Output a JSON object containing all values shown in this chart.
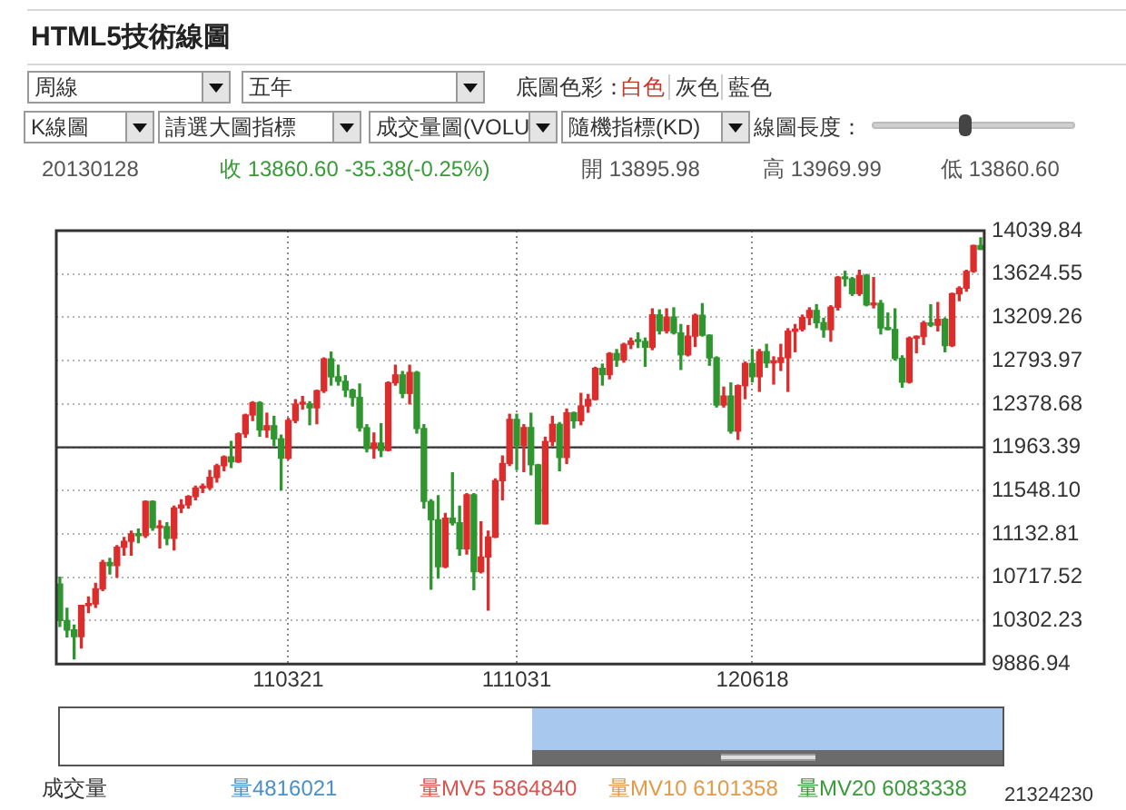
{
  "chart_data": {
    "type": "candlestick",
    "title": "HTML5技術線圖",
    "categories": [
      null,
      null,
      null,
      null,
      null,
      null,
      null,
      null,
      null,
      null,
      null,
      null,
      null,
      null,
      null,
      null,
      null,
      null,
      null,
      null,
      null,
      null,
      null,
      null,
      null,
      null,
      null,
      null,
      null,
      null,
      null,
      null,
      "110321",
      null,
      null,
      null,
      null,
      null,
      null,
      null,
      null,
      null,
      null,
      null,
      null,
      null,
      null,
      null,
      null,
      null,
      null,
      null,
      null,
      null,
      null,
      null,
      null,
      null,
      null,
      null,
      null,
      null,
      null,
      null,
      "111031",
      null,
      null,
      null,
      null,
      null,
      null,
      null,
      null,
      null,
      null,
      null,
      null,
      null,
      null,
      null,
      null,
      null,
      null,
      null,
      null,
      null,
      null,
      null,
      null,
      null,
      null,
      null,
      null,
      null,
      null,
      null,
      null,
      "120618",
      null,
      null,
      null,
      null,
      null,
      null,
      null,
      null,
      null,
      null,
      null,
      null,
      null,
      null,
      null,
      null,
      null,
      null,
      null,
      null,
      null,
      null,
      null,
      null,
      null,
      null,
      null,
      null,
      null,
      null,
      null,
      null
    ],
    "ohlc": [
      [
        10653,
        10719,
        10247,
        10303
      ],
      [
        10303,
        10420,
        10147,
        10213
      ],
      [
        10213,
        10260,
        9936,
        10150
      ],
      [
        10150,
        10448,
        10040,
        10448
      ],
      [
        10448,
        10530,
        10380,
        10463
      ],
      [
        10463,
        10660,
        10430,
        10607
      ],
      [
        10607,
        10880,
        10590,
        10860
      ],
      [
        10860,
        10900,
        10750,
        10830
      ],
      [
        10830,
        11020,
        10720,
        11006
      ],
      [
        11006,
        11100,
        10930,
        11063
      ],
      [
        11063,
        11160,
        10930,
        11133
      ],
      [
        11133,
        11180,
        11050,
        11118
      ],
      [
        11118,
        11450,
        11100,
        11445
      ],
      [
        11445,
        11450,
        11170,
        11193
      ],
      [
        11193,
        11260,
        11000,
        11204
      ],
      [
        11204,
        11240,
        11030,
        11092
      ],
      [
        11092,
        11400,
        10980,
        11382
      ],
      [
        11382,
        11460,
        11340,
        11410
      ],
      [
        11410,
        11500,
        11380,
        11492
      ],
      [
        11492,
        11590,
        11460,
        11573
      ],
      [
        11573,
        11610,
        11530,
        11578
      ],
      [
        11578,
        11740,
        11560,
        11675
      ],
      [
        11675,
        11800,
        11630,
        11787
      ],
      [
        11787,
        11880,
        11740,
        11872
      ],
      [
        11872,
        12020,
        11770,
        11824
      ],
      [
        11824,
        12100,
        11820,
        12092
      ],
      [
        12092,
        12280,
        12060,
        12273
      ],
      [
        12273,
        12400,
        12220,
        12391
      ],
      [
        12391,
        12400,
        12070,
        12130
      ],
      [
        12130,
        12290,
        12060,
        12170
      ],
      [
        12170,
        12260,
        11980,
        12045
      ],
      [
        12045,
        12080,
        11555,
        11859
      ],
      [
        11859,
        12240,
        11850,
        12221
      ],
      [
        12221,
        12420,
        12200,
        12377
      ],
      [
        12377,
        12450,
        12330,
        12380
      ],
      [
        12380,
        12400,
        12180,
        12342
      ],
      [
        12342,
        12510,
        12190,
        12506
      ],
      [
        12506,
        12820,
        12490,
        12811
      ],
      [
        12811,
        12876,
        12560,
        12639
      ],
      [
        12639,
        12750,
        12560,
        12596
      ],
      [
        12596,
        12650,
        12450,
        12512
      ],
      [
        12512,
        12520,
        12360,
        12441
      ],
      [
        12441,
        12570,
        12120,
        12151
      ],
      [
        12151,
        12180,
        11920,
        11952
      ],
      [
        11952,
        12100,
        11860,
        12004
      ],
      [
        12004,
        12190,
        11875,
        11934
      ],
      [
        11934,
        12590,
        11930,
        12582
      ],
      [
        12582,
        12750,
        12560,
        12657
      ],
      [
        12657,
        12690,
        12440,
        12480
      ],
      [
        12480,
        12750,
        12380,
        12681
      ],
      [
        12681,
        12690,
        12100,
        12143
      ],
      [
        12143,
        12180,
        11380,
        11445
      ],
      [
        11445,
        11460,
        10604,
        11269
      ],
      [
        11269,
        11500,
        10710,
        10818
      ],
      [
        10818,
        11330,
        10810,
        11285
      ],
      [
        11285,
        11720,
        11220,
        11240
      ],
      [
        11240,
        11400,
        10930,
        10992
      ],
      [
        10992,
        11520,
        10940,
        11509
      ],
      [
        11509,
        11520,
        10600,
        10771
      ],
      [
        10771,
        11250,
        10760,
        10913
      ],
      [
        10913,
        11160,
        10404,
        11103
      ],
      [
        11103,
        11660,
        11100,
        11644
      ],
      [
        11644,
        11880,
        11460,
        11809
      ],
      [
        11809,
        12280,
        11790,
        12231
      ],
      [
        12231,
        12280,
        11750,
        11983
      ],
      [
        11983,
        12180,
        11730,
        12153
      ],
      [
        12153,
        12290,
        11700,
        11796
      ],
      [
        11796,
        11800,
        11230,
        11231
      ],
      [
        11231,
        12060,
        11230,
        12019
      ],
      [
        12019,
        12260,
        11980,
        12184
      ],
      [
        12184,
        12200,
        11740,
        11866
      ],
      [
        11866,
        12330,
        11810,
        12294
      ],
      [
        12294,
        12300,
        12150,
        12218
      ],
      [
        12218,
        12480,
        12180,
        12360
      ],
      [
        12360,
        12470,
        12300,
        12422
      ],
      [
        12422,
        12730,
        12420,
        12720
      ],
      [
        12720,
        12760,
        12560,
        12660
      ],
      [
        12660,
        12870,
        12620,
        12862
      ],
      [
        12862,
        12900,
        12740,
        12801
      ],
      [
        12801,
        12960,
        12780,
        12950
      ],
      [
        12950,
        13010,
        12910,
        12983
      ],
      [
        12983,
        13060,
        12920,
        12978
      ],
      [
        12978,
        13010,
        12740,
        12922
      ],
      [
        12922,
        13290,
        12900,
        13233
      ],
      [
        13233,
        13280,
        13050,
        13081
      ],
      [
        13081,
        13290,
        13060,
        13212
      ],
      [
        13212,
        13300,
        13050,
        13060
      ],
      [
        13060,
        13140,
        12710,
        12850
      ],
      [
        12850,
        13130,
        12840,
        13029
      ],
      [
        13029,
        13240,
        12930,
        13229
      ],
      [
        13229,
        13340,
        13030,
        13038
      ],
      [
        13038,
        13040,
        12750,
        12821
      ],
      [
        12821,
        12830,
        12350,
        12369
      ],
      [
        12369,
        12540,
        12350,
        12455
      ],
      [
        12455,
        12580,
        12100,
        12119
      ],
      [
        12119,
        12560,
        12040,
        12554
      ],
      [
        12554,
        12780,
        12430,
        12767
      ],
      [
        12767,
        12900,
        12590,
        12640
      ],
      [
        12640,
        12900,
        12500,
        12880
      ],
      [
        12880,
        12950,
        12730,
        12772
      ],
      [
        12772,
        12830,
        12570,
        12777
      ],
      [
        12777,
        12950,
        12700,
        12822
      ],
      [
        12822,
        13100,
        12500,
        13076
      ],
      [
        13076,
        13140,
        12880,
        13096
      ],
      [
        13096,
        13230,
        13080,
        13207
      ],
      [
        13207,
        13300,
        13140,
        13275
      ],
      [
        13275,
        13330,
        13110,
        13158
      ],
      [
        13158,
        13200,
        13020,
        13091
      ],
      [
        13091,
        13320,
        12980,
        13306
      ],
      [
        13306,
        13600,
        13280,
        13593
      ],
      [
        13593,
        13650,
        13510,
        13579
      ],
      [
        13579,
        13590,
        13420,
        13437
      ],
      [
        13437,
        13660,
        13420,
        13610
      ],
      [
        13610,
        13620,
        13320,
        13328
      ],
      [
        13328,
        13590,
        13300,
        13343
      ],
      [
        13343,
        13370,
        13050,
        13107
      ],
      [
        13107,
        13250,
        13090,
        13093
      ],
      [
        13093,
        13290,
        12800,
        12815
      ],
      [
        12815,
        12840,
        12540,
        12588
      ],
      [
        12588,
        13020,
        12580,
        13010
      ],
      [
        13010,
        13030,
        12870,
        13026
      ],
      [
        13026,
        13170,
        12950,
        13155
      ],
      [
        13155,
        13330,
        13120,
        13135
      ],
      [
        13135,
        13350,
        13080,
        13190
      ],
      [
        13190,
        13200,
        12880,
        12938
      ],
      [
        12938,
        13440,
        12930,
        13435
      ],
      [
        13435,
        13500,
        13370,
        13488
      ],
      [
        13488,
        13660,
        13460,
        13650
      ],
      [
        13650,
        13900,
        13640,
        13896
      ],
      [
        13895.98,
        13969.99,
        13860.6,
        13860.6
      ]
    ],
    "colors": [
      "#2f962f",
      "#2f962f",
      "#2f962f",
      "#dd2c2c",
      "#dd2c2c",
      "#dd2c2c",
      "#dd2c2c",
      "#2f962f",
      "#dd2c2c",
      "#dd2c2c",
      "#dd2c2c",
      "#2f962f",
      "#dd2c2c",
      "#2f962f",
      "#dd2c2c",
      "#2f962f",
      "#dd2c2c",
      "#dd2c2c",
      "#dd2c2c",
      "#dd2c2c",
      "#dd2c2c",
      "#dd2c2c",
      "#dd2c2c",
      "#dd2c2c",
      "#2f962f",
      "#dd2c2c",
      "#dd2c2c",
      "#dd2c2c",
      "#2f962f",
      "#dd2c2c",
      "#2f962f",
      "#2f962f",
      "#dd2c2c",
      "#dd2c2c",
      "#dd2c2c",
      "#2f962f",
      "#dd2c2c",
      "#dd2c2c",
      "#2f962f",
      "#2f962f",
      "#2f962f",
      "#2f962f",
      "#2f962f",
      "#2f962f",
      "#dd2c2c",
      "#2f962f",
      "#dd2c2c",
      "#dd2c2c",
      "#2f962f",
      "#dd2c2c",
      "#2f962f",
      "#2f962f",
      "#2f962f",
      "#2f962f",
      "#dd2c2c",
      "#2f962f",
      "#2f962f",
      "#dd2c2c",
      "#2f962f",
      "#dd2c2c",
      "#dd2c2c",
      "#dd2c2c",
      "#dd2c2c",
      "#dd2c2c",
      "#2f962f",
      "#dd2c2c",
      "#2f962f",
      "#2f962f",
      "#dd2c2c",
      "#dd2c2c",
      "#2f962f",
      "#dd2c2c",
      "#2f962f",
      "#dd2c2c",
      "#dd2c2c",
      "#dd2c2c",
      "#2f962f",
      "#dd2c2c",
      "#2f962f",
      "#dd2c2c",
      "#dd2c2c",
      "#2f962f",
      "#2f962f",
      "#dd2c2c",
      "#2f962f",
      "#dd2c2c",
      "#2f962f",
      "#2f962f",
      "#dd2c2c",
      "#dd2c2c",
      "#2f962f",
      "#2f962f",
      "#2f962f",
      "#dd2c2c",
      "#2f962f",
      "#dd2c2c",
      "#dd2c2c",
      "#2f962f",
      "#dd2c2c",
      "#2f962f",
      "#dd2c2c",
      "#dd2c2c",
      "#dd2c2c",
      "#dd2c2c",
      "#dd2c2c",
      "#dd2c2c",
      "#2f962f",
      "#2f962f",
      "#dd2c2c",
      "#dd2c2c",
      "#2f962f",
      "#2f962f",
      "#dd2c2c",
      "#2f962f",
      "#dd2c2c",
      "#2f962f",
      "#2f962f",
      "#2f962f",
      "#2f962f",
      "#dd2c2c",
      "#dd2c2c",
      "#dd2c2c",
      "#2f962f",
      "#dd2c2c",
      "#2f962f",
      "#dd2c2c",
      "#dd2c2c",
      "#dd2c2c",
      "#dd2c2c",
      "#2f962f"
    ],
    "ylim": [
      9886.94,
      14039.84
    ],
    "yticks": [
      9886.94,
      10302.23,
      10717.52,
      11132.81,
      {
        "value": 11548.1,
        "label": "11548.10"
      },
      11963.39,
      12378.68,
      12793.97,
      13209.26,
      13624.55,
      14039.84
    ],
    "grid": true,
    "ref_lines": [
      {
        "axis": "y",
        "value": 11963.39,
        "color": "#333333"
      }
    ],
    "annotations": [
      "周線",
      "五年",
      "底圖色彩：",
      "白色",
      "灰色",
      "藍色",
      "K線圖",
      "請選大圖指標",
      "成交量圖(VOLU",
      "隨機指標(KD)",
      "線圖長度：",
      "20130128",
      "收 13860.60 -35.38(-0.25%)",
      "開 13895.98",
      "高 13969.99",
      "低 13860.60",
      "成交量",
      "量4816021",
      "量MV5 5864840",
      "量MV10 6101358",
      "量MV20 6083338",
      "21324230"
    ]
  }
}
